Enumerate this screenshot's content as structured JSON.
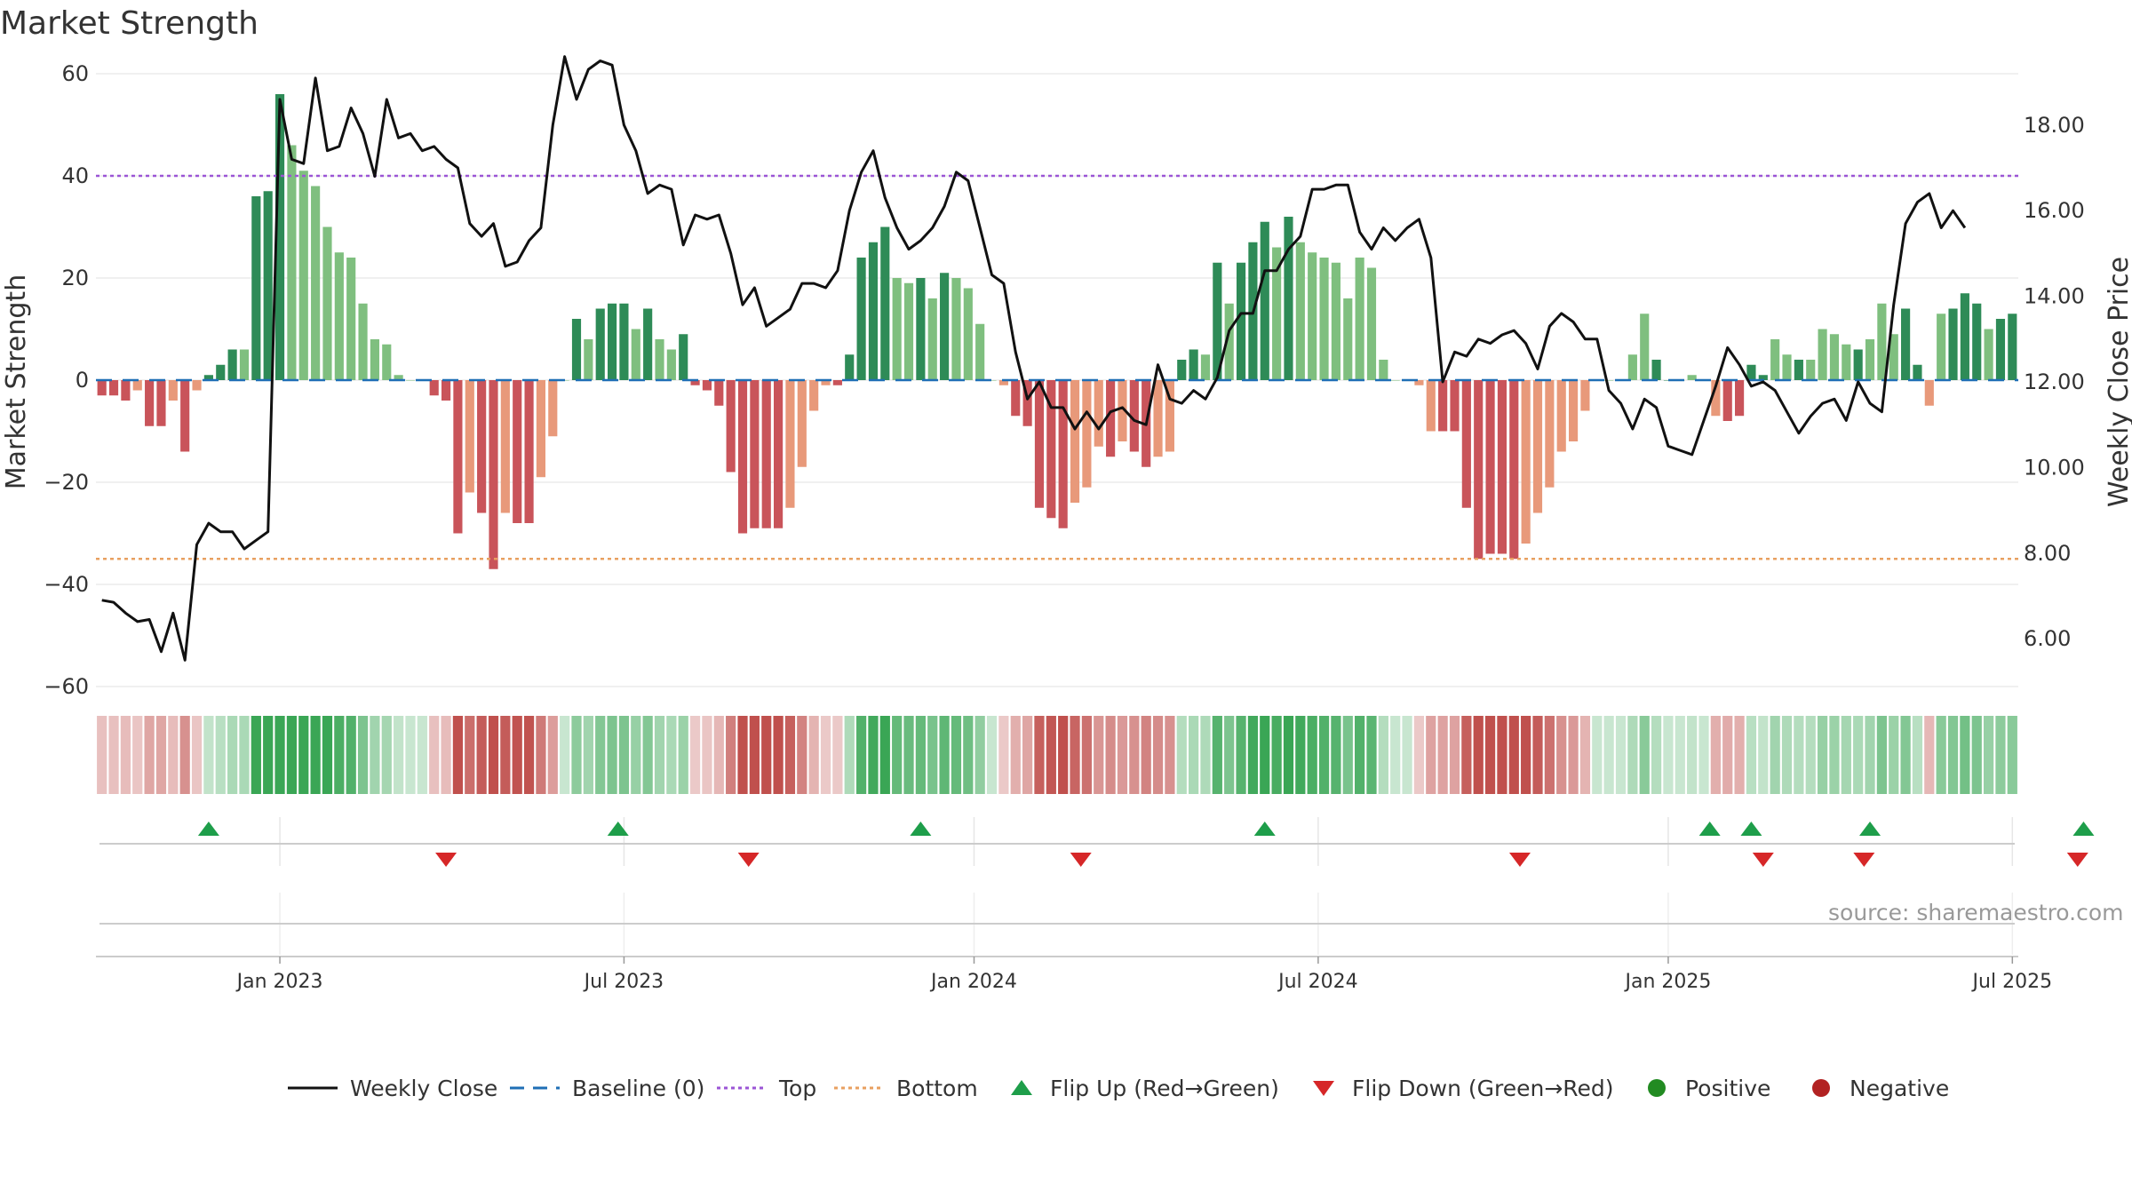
{
  "title": "Market Strength",
  "source": "source: sharemaestro.com",
  "chart_data": {
    "type": "bar",
    "title": "Market Strength",
    "ylabel": "Market Strength",
    "y2label": "Weekly Close Price",
    "ylim": [
      -60,
      60
    ],
    "y2lim": [
      3.6,
      20.0
    ],
    "y_ticks": [
      60,
      40,
      20,
      0,
      -20,
      -40,
      -60
    ],
    "y_tick_labels": [
      "60",
      "40",
      "20",
      "0",
      "−20",
      "−40",
      "−60"
    ],
    "y2_ticks": [
      18,
      16,
      14,
      12,
      10,
      8,
      6
    ],
    "y2_tick_labels": [
      "18.00",
      "16.00",
      "14.00",
      "12.00",
      "10.00",
      "8.00",
      "6.00"
    ],
    "x_ticks": [
      "Jan 2023",
      "Jul 2023",
      "Jan 2024",
      "Jul 2024",
      "Jan 2025",
      "Jul 2025"
    ],
    "x_tick_weeks": [
      15,
      44,
      73.5,
      102.5,
      132,
      161
    ],
    "top_line": 40,
    "bottom_line": -35,
    "baseline": 0,
    "grid": true,
    "legend_position": "bottom",
    "strength": [
      -3,
      -3,
      -4,
      -2,
      -9,
      -9,
      -4,
      -14,
      -2,
      1,
      3,
      6,
      6,
      36,
      37,
      56,
      46,
      41,
      38,
      30,
      25,
      24,
      15,
      8,
      7,
      1,
      0,
      0,
      -3,
      -4,
      -30,
      -22,
      -26,
      -37,
      -26,
      -28,
      -28,
      -19,
      -11,
      0,
      12,
      8,
      14,
      15,
      15,
      10,
      14,
      8,
      6,
      9,
      -1,
      -2,
      -5,
      -18,
      -30,
      -29,
      -29,
      -29,
      -25,
      -17,
      -6,
      -1,
      -1,
      5,
      24,
      27,
      30,
      20,
      19,
      20,
      16,
      21,
      20,
      18,
      11,
      0,
      -1,
      -7,
      -9,
      -25,
      -27,
      -29,
      -24,
      -21,
      -13,
      -15,
      -12,
      -14,
      -17,
      -15,
      -14,
      4,
      6,
      5,
      23,
      15,
      23,
      27,
      31,
      26,
      32,
      27,
      25,
      24,
      23,
      16,
      24,
      22,
      4,
      0,
      0,
      -1,
      -10,
      -10,
      -10,
      -25,
      -35,
      -34,
      -34,
      -35,
      -32,
      -26,
      -21,
      -14,
      -12,
      -6,
      0,
      0,
      0,
      5,
      13,
      4,
      0,
      0,
      1,
      0,
      -7,
      -8,
      -7,
      3,
      1,
      8,
      5,
      4,
      4,
      10,
      9,
      7,
      6,
      8,
      15,
      9,
      14,
      3,
      -5,
      13,
      14,
      17,
      15,
      10,
      12,
      13
    ],
    "strength_shade": [
      "strong",
      "strong",
      "strong",
      "light",
      "strong",
      "strong",
      "light",
      "strong",
      "light",
      "strong",
      "strong",
      "strong",
      "light",
      "strong",
      "strong",
      "strong",
      "light",
      "light",
      "light",
      "light",
      "light",
      "light",
      "light",
      "light",
      "light",
      "light",
      "light",
      "light",
      "strong",
      "strong",
      "strong",
      "light",
      "strong",
      "strong",
      "light",
      "strong",
      "strong",
      "light",
      "light",
      "light",
      "strong",
      "light",
      "strong",
      "strong",
      "strong",
      "light",
      "strong",
      "light",
      "light",
      "strong",
      "strong",
      "strong",
      "strong",
      "strong",
      "strong",
      "strong",
      "strong",
      "strong",
      "light",
      "light",
      "light",
      "light",
      "strong",
      "strong",
      "strong",
      "strong",
      "strong",
      "light",
      "light",
      "strong",
      "light",
      "strong",
      "light",
      "light",
      "light",
      "light",
      "light",
      "strong",
      "strong",
      "strong",
      "strong",
      "strong",
      "light",
      "light",
      "light",
      "strong",
      "light",
      "strong",
      "strong",
      "light",
      "light",
      "strong",
      "strong",
      "light",
      "strong",
      "light",
      "strong",
      "strong",
      "strong",
      "light",
      "strong",
      "light",
      "light",
      "light",
      "light",
      "light",
      "light",
      "light",
      "light",
      "light",
      "light",
      "light",
      "light",
      "strong",
      "strong",
      "strong",
      "strong",
      "strong",
      "strong",
      "strong",
      "light",
      "light",
      "light",
      "light",
      "light",
      "light",
      "light",
      "light",
      "light",
      "light",
      "light",
      "strong",
      "strong",
      "light",
      "light",
      "strong",
      "light",
      "strong",
      "strong",
      "strong",
      "strong",
      "light",
      "light",
      "strong",
      "light",
      "light",
      "light",
      "light",
      "strong",
      "light",
      "light",
      "light",
      "strong",
      "strong",
      "light",
      "light",
      "strong",
      "strong",
      "strong",
      "light",
      "strong",
      "strong",
      "strong",
      "light",
      "light",
      "strong",
      "strong"
    ],
    "close": [
      6.9,
      6.85,
      6.6,
      6.4,
      6.45,
      5.7,
      6.6,
      5.5,
      8.2,
      8.7,
      8.5,
      8.5,
      8.1,
      8.3,
      8.5,
      18.6,
      17.2,
      17.1,
      19.1,
      17.4,
      17.5,
      18.4,
      17.8,
      16.8,
      18.6,
      17.7,
      17.8,
      17.4,
      17.5,
      17.2,
      17.0,
      15.7,
      15.4,
      15.7,
      14.7,
      14.8,
      15.3,
      15.6,
      18.0,
      19.6,
      18.6,
      19.3,
      19.5,
      19.4,
      18.0,
      17.4,
      16.4,
      16.6,
      16.5,
      15.2,
      15.9,
      15.8,
      15.9,
      15.0,
      13.8,
      14.2,
      13.3,
      13.5,
      13.7,
      14.3,
      14.3,
      14.2,
      14.6,
      16.0,
      16.9,
      17.4,
      16.3,
      15.6,
      15.1,
      15.3,
      15.6,
      16.1,
      16.9,
      16.7,
      15.6,
      14.5,
      14.3,
      12.7,
      11.6,
      12.0,
      11.4,
      11.4,
      10.9,
      11.3,
      10.9,
      11.3,
      11.4,
      11.1,
      11.0,
      12.4,
      11.6,
      11.5,
      11.8,
      11.6,
      12.1,
      13.2,
      13.6,
      13.6,
      14.6,
      14.6,
      15.1,
      15.4,
      16.5,
      16.5,
      16.6,
      16.6,
      15.5,
      15.1,
      15.6,
      15.3,
      15.6,
      15.8,
      14.9,
      12.0,
      12.7,
      12.6,
      13.0,
      12.9,
      13.1,
      13.2,
      12.9,
      12.3,
      13.3,
      13.6,
      13.4,
      13.0,
      13.0,
      11.8,
      11.5,
      10.9,
      11.6,
      11.4,
      10.5,
      10.4,
      10.3,
      11.1,
      11.9,
      12.8,
      12.4,
      11.9,
      12.0,
      11.8,
      11.3,
      10.8,
      11.2,
      11.5,
      11.6,
      11.1,
      12.0,
      11.5,
      11.3,
      13.8,
      15.7,
      16.2,
      16.4,
      15.6,
      16.0,
      15.6
    ]
  },
  "flips": {
    "up_weeks": [
      9,
      43.5,
      69,
      98,
      135.5,
      139,
      149,
      167
    ],
    "down_weeks": [
      29,
      54.5,
      82.5,
      119.5,
      140,
      148.5,
      166.5
    ]
  },
  "legend": {
    "items": [
      {
        "label": "Weekly Close",
        "icon": "solid-line-icon"
      },
      {
        "label": "Baseline (0)",
        "icon": "dashed-line-icon"
      },
      {
        "label": "Top",
        "icon": "dotted-purple-line-icon"
      },
      {
        "label": "Bottom",
        "icon": "dotted-orange-line-icon"
      },
      {
        "label": "Flip Up (Red→Green)",
        "icon": "triangle-up-icon"
      },
      {
        "label": "Flip Down (Green→Red)",
        "icon": "triangle-down-icon"
      },
      {
        "label": "Positive",
        "icon": "green-dot-icon"
      },
      {
        "label": "Negative",
        "icon": "red-dot-icon"
      }
    ]
  },
  "colors": {
    "pos_strong": "#2e8b57",
    "pos_light": "#7fbf7f",
    "neg_strong": "#c9545a",
    "neg_light": "#e8997a",
    "close_line": "#111111",
    "baseline": "#1f6fb5",
    "top": "#9b55d6",
    "bottom": "#e8a060",
    "flip_up": "#1e9e4a",
    "flip_down": "#d62728",
    "positive_dot": "#228b22",
    "negative_dot": "#b22222"
  }
}
